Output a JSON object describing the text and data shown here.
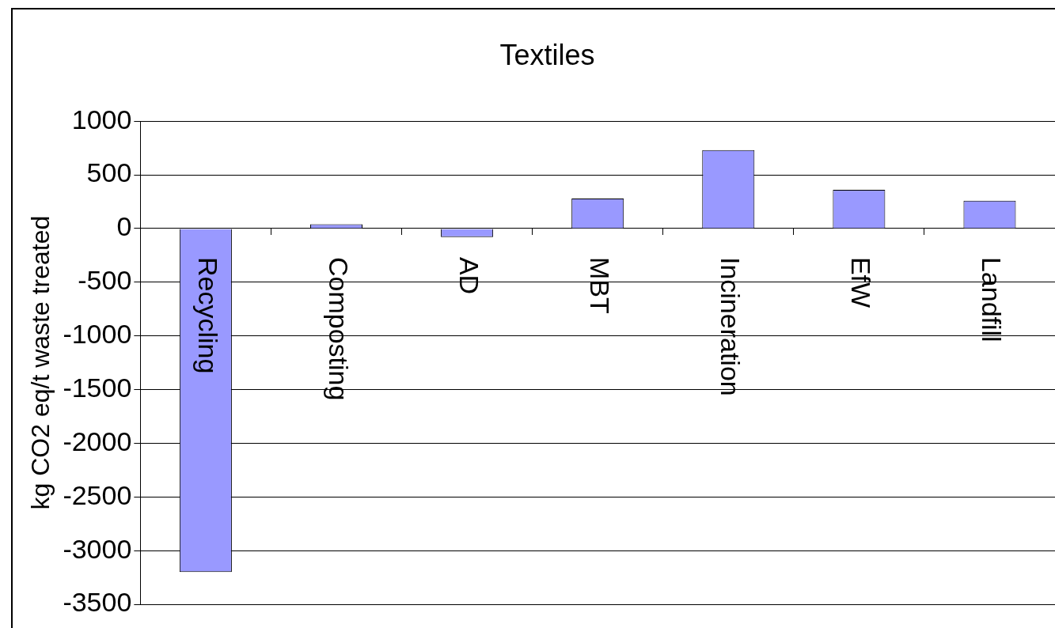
{
  "chart_data": {
    "type": "bar",
    "title": "Textiles",
    "ylabel": "kg CO2 eq/t waste treated",
    "categories": [
      "Recycling",
      "Composting",
      "AD",
      "MBT",
      "Incineration",
      "EfW",
      "Landfill"
    ],
    "values": [
      -3200,
      40,
      -80,
      280,
      730,
      360,
      260
    ],
    "color": "#9999ff",
    "ylim": [
      -3500,
      1000
    ],
    "yticks": [
      -3500,
      -3000,
      -2500,
      -2000,
      -1500,
      -1000,
      -500,
      0,
      500,
      1000
    ],
    "grid": "y",
    "legend": false
  }
}
